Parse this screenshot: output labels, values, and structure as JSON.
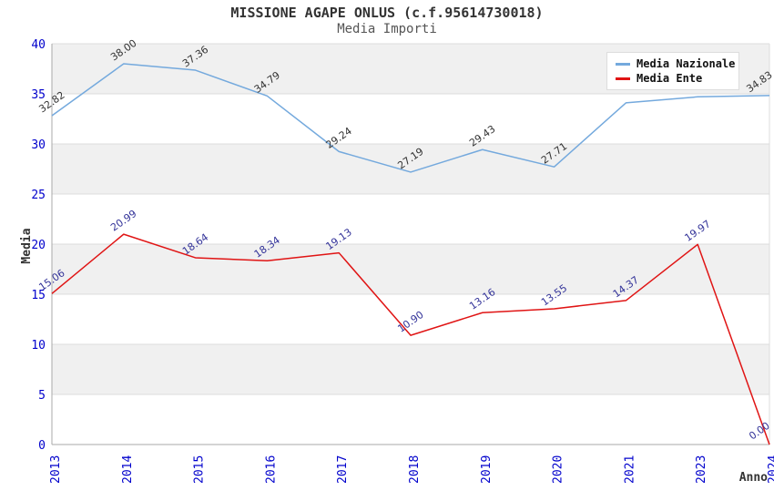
{
  "chart_data": {
    "type": "line",
    "title": "MISSIONE AGAPE ONLUS (c.f.95614730018)",
    "subtitle": "Media Importi",
    "xlabel": "Anno",
    "ylabel": "Media",
    "ylim": [
      0,
      40
    ],
    "ytick_step": 5,
    "ytick_labels": [
      "0",
      "5",
      "10",
      "15",
      "20",
      "25",
      "30",
      "35",
      "40"
    ],
    "grid": "horizontal-bands",
    "legend_position": "top-right-inside",
    "categories": [
      "2013",
      "2014",
      "2015",
      "2016",
      "2017",
      "2018",
      "2019",
      "2020",
      "2021",
      "2023",
      "2024"
    ],
    "series": [
      {
        "name": "Media Nazionale",
        "color": "#74a9dd",
        "label_color": "#333333",
        "values": [
          32.82,
          38.0,
          37.36,
          34.79,
          29.24,
          27.19,
          29.43,
          27.71,
          34.1,
          34.7,
          34.83
        ],
        "labels": [
          "32.82",
          "38.00",
          "37.36",
          "34.79",
          "29.24",
          "27.19",
          "29.43",
          "27.71",
          "",
          "",
          "34.83"
        ]
      },
      {
        "name": "Media Ente",
        "color": "#e01414",
        "label_color": "#333399",
        "values": [
          15.06,
          20.99,
          18.64,
          18.34,
          19.13,
          10.9,
          13.16,
          13.55,
          14.37,
          19.97,
          0.0
        ],
        "labels": [
          "15.06",
          "20.99",
          "18.64",
          "18.34",
          "19.13",
          "10.90",
          "13.16",
          "13.55",
          "14.37",
          "19.97",
          "0.00"
        ]
      }
    ],
    "colors": {
      "tick_label": "#0000cc",
      "band_gray": "#f0f0f0",
      "band_white": "#ffffff",
      "grid_line": "#dcdcdc",
      "axis_line": "#aaaaaa",
      "plot_edge": "#dddddd",
      "axis_title": "#333333"
    }
  }
}
